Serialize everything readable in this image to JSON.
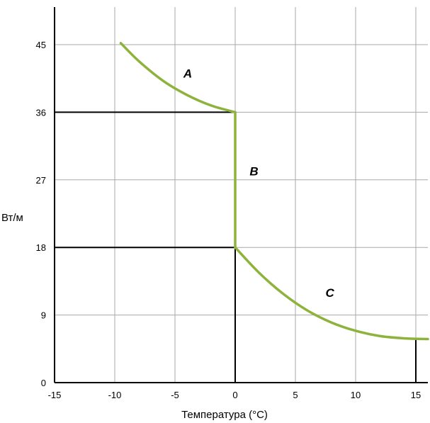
{
  "chart_data": {
    "type": "line",
    "title": "",
    "xlabel": "Температура (°C)",
    "ylabel": "Вт/м",
    "xlim": [
      -15,
      16
    ],
    "ylim": [
      0,
      50
    ],
    "x_ticks": [
      -15,
      -10,
      -5,
      0,
      5,
      10,
      15
    ],
    "y_ticks": [
      0,
      9,
      18,
      27,
      36,
      45
    ],
    "grid": true,
    "line_color": "#8db33d",
    "series": [
      {
        "label": "A",
        "x": [
          -9.5,
          -8,
          -6,
          -4,
          -2,
          0
        ],
        "y": [
          45.2,
          42.8,
          40.2,
          38.3,
          36.9,
          36
        ]
      },
      {
        "label": "B",
        "x": [
          0,
          0
        ],
        "y": [
          36,
          18
        ]
      },
      {
        "label": "C",
        "x": [
          0,
          2,
          4,
          6,
          8,
          10,
          12,
          14,
          16
        ],
        "y": [
          18,
          14.6,
          11.8,
          9.6,
          8.0,
          6.9,
          6.2,
          5.9,
          5.8
        ]
      }
    ],
    "reference_lines": [
      {
        "from": [
          -15,
          36
        ],
        "to": [
          0,
          36
        ]
      },
      {
        "from": [
          -15,
          18
        ],
        "to": [
          0,
          18
        ]
      },
      {
        "from": [
          0,
          18
        ],
        "to": [
          0,
          0
        ]
      },
      {
        "from": [
          15,
          5.8
        ],
        "to": [
          15,
          0
        ]
      },
      {
        "from": [
          15,
          5.8
        ],
        "to": [
          16,
          5.8
        ]
      }
    ]
  }
}
